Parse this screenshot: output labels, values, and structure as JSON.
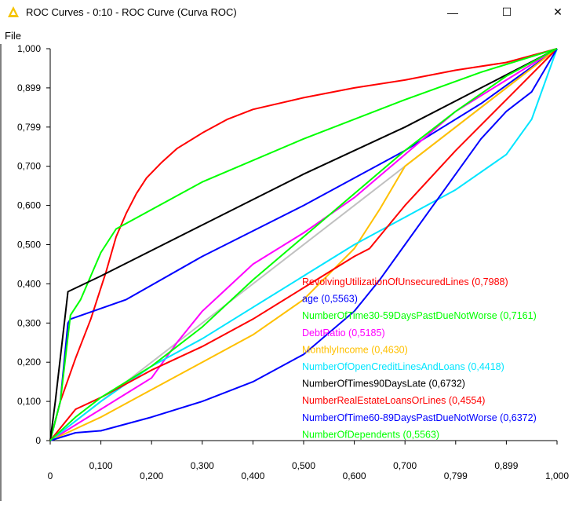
{
  "window": {
    "title": "ROC Curves - 0:10 - ROC Curve (Curva ROC)",
    "minimize_glyph": "—",
    "maximize_glyph": "☐",
    "close_glyph": "✕",
    "app_icon": "knime-triangle-icon",
    "icon_color": "#f5c400"
  },
  "menu": {
    "file_label": "File"
  },
  "chart_data": {
    "type": "line",
    "xlim": [
      0,
      1
    ],
    "ylim": [
      0,
      1
    ],
    "x_ticks": [
      "0",
      "0,100",
      "0,200",
      "0,300",
      "0,400",
      "0,500",
      "0,600",
      "0,700",
      "0,799",
      "0,899",
      "1,000"
    ],
    "y_ticks": [
      "0",
      "0,100",
      "0,200",
      "0,300",
      "0,400",
      "0,500",
      "0,600",
      "0,700",
      "0,799",
      "0,899",
      "1,000"
    ],
    "grid": false,
    "legend_position": "bottom-right",
    "diagonal_color": "#c0c0c0",
    "series": [
      {
        "name": "RevolvingUtilizationOfUnsecuredLines",
        "auc": "0,7988",
        "color": "#ff0000",
        "points": [
          [
            0,
            0
          ],
          [
            0.02,
            0.1
          ],
          [
            0.05,
            0.21
          ],
          [
            0.08,
            0.31
          ],
          [
            0.11,
            0.43
          ],
          [
            0.13,
            0.52
          ],
          [
            0.15,
            0.58
          ],
          [
            0.17,
            0.63
          ],
          [
            0.19,
            0.67
          ],
          [
            0.22,
            0.71
          ],
          [
            0.25,
            0.745
          ],
          [
            0.3,
            0.785
          ],
          [
            0.35,
            0.82
          ],
          [
            0.4,
            0.845
          ],
          [
            0.5,
            0.875
          ],
          [
            0.6,
            0.9
          ],
          [
            0.7,
            0.92
          ],
          [
            0.8,
            0.945
          ],
          [
            0.9,
            0.965
          ],
          [
            1,
            1
          ]
        ]
      },
      {
        "name": "age",
        "auc": "0,5563",
        "color": "#0000ff",
        "points": [
          [
            0,
            0
          ],
          [
            0.02,
            0.1
          ],
          [
            0.035,
            0.3
          ],
          [
            0.04,
            0.31
          ],
          [
            0.15,
            0.36
          ],
          [
            0.3,
            0.47
          ],
          [
            0.5,
            0.6
          ],
          [
            0.7,
            0.74
          ],
          [
            0.85,
            0.86
          ],
          [
            1,
            1
          ]
        ]
      },
      {
        "name": "NumberOfTime30-59DaysPastDueNotWorse",
        "auc": "0,7161",
        "color": "#00ff00",
        "points": [
          [
            0,
            0
          ],
          [
            0.02,
            0.1
          ],
          [
            0.04,
            0.32
          ],
          [
            0.06,
            0.36
          ],
          [
            0.1,
            0.48
          ],
          [
            0.13,
            0.54
          ],
          [
            0.3,
            0.66
          ],
          [
            0.5,
            0.77
          ],
          [
            0.7,
            0.87
          ],
          [
            0.85,
            0.94
          ],
          [
            1,
            1
          ]
        ]
      },
      {
        "name": "DebtRatio",
        "auc": "0,5185",
        "color": "#ff00ff",
        "points": [
          [
            0,
            0
          ],
          [
            0.05,
            0.04
          ],
          [
            0.1,
            0.08
          ],
          [
            0.15,
            0.12
          ],
          [
            0.2,
            0.16
          ],
          [
            0.25,
            0.25
          ],
          [
            0.3,
            0.33
          ],
          [
            0.35,
            0.39
          ],
          [
            0.4,
            0.45
          ],
          [
            0.5,
            0.53
          ],
          [
            0.6,
            0.62
          ],
          [
            0.7,
            0.73
          ],
          [
            0.8,
            0.84
          ],
          [
            0.9,
            0.92
          ],
          [
            1,
            1
          ]
        ]
      },
      {
        "name": "MonthlyIncome",
        "auc": "0,4630",
        "color": "#ffc000",
        "points": [
          [
            0,
            0
          ],
          [
            0.1,
            0.06
          ],
          [
            0.2,
            0.13
          ],
          [
            0.3,
            0.2
          ],
          [
            0.4,
            0.27
          ],
          [
            0.5,
            0.36
          ],
          [
            0.6,
            0.49
          ],
          [
            0.65,
            0.59
          ],
          [
            0.7,
            0.7
          ],
          [
            0.8,
            0.8
          ],
          [
            0.9,
            0.9
          ],
          [
            1,
            1
          ]
        ]
      },
      {
        "name": "NumberOfOpenCreditLinesAndLoans",
        "auc": "0,4418",
        "color": "#00e5ff",
        "points": [
          [
            0,
            0
          ],
          [
            0.05,
            0.05
          ],
          [
            0.1,
            0.1
          ],
          [
            0.2,
            0.19
          ],
          [
            0.3,
            0.26
          ],
          [
            0.4,
            0.34
          ],
          [
            0.5,
            0.42
          ],
          [
            0.6,
            0.5
          ],
          [
            0.7,
            0.57
          ],
          [
            0.8,
            0.64
          ],
          [
            0.9,
            0.73
          ],
          [
            0.95,
            0.82
          ],
          [
            1,
            1
          ]
        ]
      },
      {
        "name": "NumberOfTimes90DaysLate",
        "auc": "0,6732",
        "color": "#000000",
        "points": [
          [
            0,
            0
          ],
          [
            0.01,
            0.1
          ],
          [
            0.035,
            0.38
          ],
          [
            0.1,
            0.42
          ],
          [
            0.3,
            0.55
          ],
          [
            0.5,
            0.68
          ],
          [
            0.7,
            0.8
          ],
          [
            0.85,
            0.9
          ],
          [
            1,
            1
          ]
        ]
      },
      {
        "name": "NumberRealEstateLoansOrLines",
        "auc": "0,4554",
        "color": "#ff0000",
        "points": [
          [
            0,
            0
          ],
          [
            0.05,
            0.08
          ],
          [
            0.1,
            0.11
          ],
          [
            0.2,
            0.18
          ],
          [
            0.3,
            0.24
          ],
          [
            0.4,
            0.31
          ],
          [
            0.5,
            0.39
          ],
          [
            0.6,
            0.47
          ],
          [
            0.63,
            0.49
          ],
          [
            0.7,
            0.6
          ],
          [
            0.8,
            0.74
          ],
          [
            0.9,
            0.87
          ],
          [
            1,
            1
          ]
        ]
      },
      {
        "name": "NumberOfTime60-89DaysPastDueNotWorse",
        "auc": "0,6372",
        "color": "#0000ff",
        "points": [
          [
            0,
            0
          ],
          [
            0.05,
            0.02
          ],
          [
            0.1,
            0.025
          ],
          [
            0.2,
            0.06
          ],
          [
            0.3,
            0.1
          ],
          [
            0.4,
            0.15
          ],
          [
            0.5,
            0.22
          ],
          [
            0.6,
            0.33
          ],
          [
            0.65,
            0.41
          ],
          [
            0.7,
            0.5
          ],
          [
            0.75,
            0.59
          ],
          [
            0.8,
            0.68
          ],
          [
            0.85,
            0.77
          ],
          [
            0.9,
            0.84
          ],
          [
            0.95,
            0.89
          ],
          [
            1,
            1
          ]
        ]
      },
      {
        "name": "NumberOfDependents",
        "auc": "0,5563",
        "color": "#00ff00",
        "points": [
          [
            0,
            0
          ],
          [
            0.05,
            0.06
          ],
          [
            0.1,
            0.11
          ],
          [
            0.2,
            0.19
          ],
          [
            0.3,
            0.29
          ],
          [
            0.4,
            0.41
          ],
          [
            0.5,
            0.52
          ],
          [
            0.6,
            0.63
          ],
          [
            0.7,
            0.74
          ],
          [
            0.8,
            0.84
          ],
          [
            0.9,
            0.93
          ],
          [
            1,
            1
          ]
        ]
      }
    ]
  }
}
